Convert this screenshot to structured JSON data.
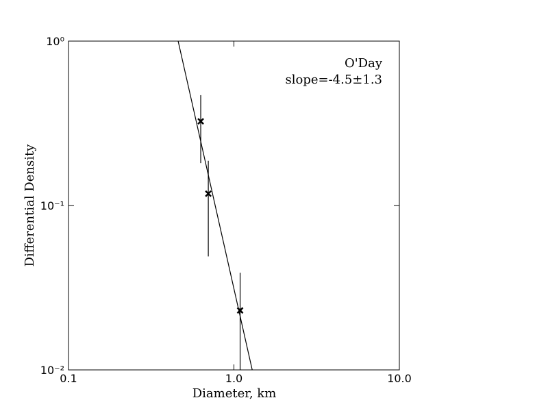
{
  "chart_data": {
    "type": "scatter",
    "xlabel": "Diameter, km",
    "ylabel": "Differential Density",
    "xscale": "log",
    "yscale": "log",
    "xlim": [
      0.1,
      10
    ],
    "ylim": [
      0.01,
      1
    ],
    "xticks": [
      0.1,
      {
        "value": 1,
        "label": "1.0"
      },
      {
        "value": 10,
        "label": "10.0"
      }
    ],
    "yticks": [
      {
        "value": 0.01,
        "label": "10⁻²"
      },
      {
        "value": 0.1,
        "label": "10⁻¹"
      },
      {
        "value": 1,
        "label": "10⁰"
      }
    ],
    "series": [
      {
        "x": [
          0.63,
          0.7,
          1.09
        ],
        "values": [
          0.325,
          0.118,
          0.023
        ],
        "errors": [
          0.144,
          0.069,
          0.016
        ],
        "color": "#000000"
      }
    ],
    "fit": {
      "x": [
        0.46,
        1.29
      ],
      "values": [
        1,
        0.01
      ],
      "color": "#000000"
    },
    "annotations": [
      "O'Day",
      "slope=-4.5±1.3"
    ]
  }
}
